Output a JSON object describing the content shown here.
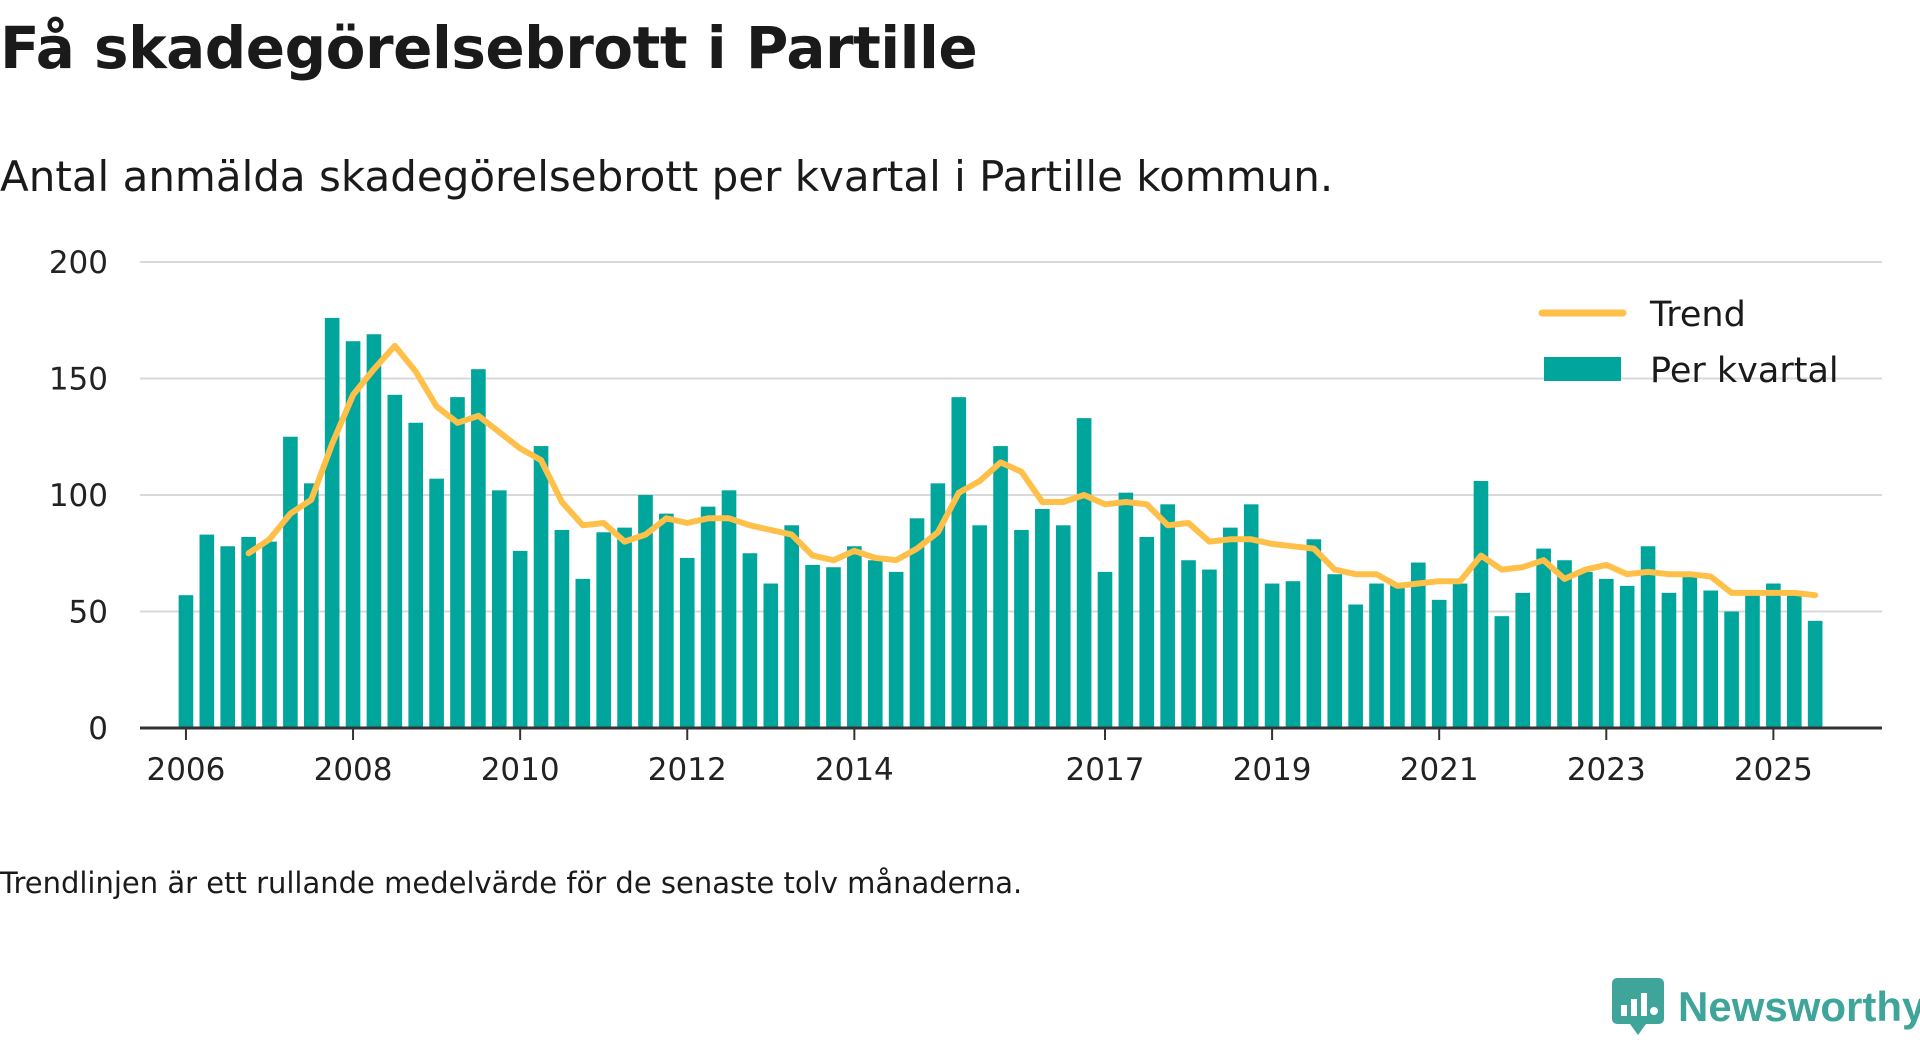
{
  "title": "Få skadegörelsebrott i Partille",
  "subtitle": "Antal anmälda skadegörelsebrott per kvartal i Partille kommun.",
  "footnote": "Trendlinjen är ett rullande medelvärde för de senaste tolv månaderna.",
  "brand": "Newsworthy",
  "colors": {
    "bars": "#00a69c",
    "trend": "#ffc04a",
    "grid": "#d9d9d9",
    "axis": "#333333",
    "brand": "#3fa59b"
  },
  "chart_data": {
    "type": "bar",
    "x_start": 2006.0,
    "x_step": 0.25,
    "ylim": [
      0,
      200
    ],
    "xlim": [
      2005.45,
      2026.3
    ],
    "yticks": [
      0,
      50,
      100,
      150,
      200
    ],
    "xticks": [
      2006,
      2008,
      2010,
      2012,
      2014,
      2017,
      2019,
      2021,
      2023,
      2025
    ],
    "grid": true,
    "legend_position": "top-right",
    "legend": [
      "Trend",
      "Per kvartal"
    ],
    "series": [
      {
        "name": "Per kvartal",
        "type": "bar",
        "values": [
          57,
          83,
          78,
          82,
          80,
          125,
          105,
          176,
          166,
          169,
          143,
          131,
          107,
          142,
          154,
          102,
          76,
          121,
          85,
          64,
          84,
          86,
          100,
          92,
          73,
          95,
          102,
          75,
          62,
          87,
          70,
          69,
          78,
          72,
          67,
          90,
          105,
          142,
          87,
          121,
          85,
          94,
          87,
          133,
          67,
          101,
          82,
          96,
          72,
          68,
          86,
          96,
          62,
          63,
          81,
          66,
          53,
          62,
          62,
          71,
          55,
          62,
          106,
          48,
          58,
          77,
          72,
          67,
          64,
          61,
          78,
          58,
          65,
          59,
          50,
          57,
          62,
          57,
          46
        ]
      },
      {
        "name": "Trend",
        "type": "line",
        "x": [
          2006.75,
          2007.0,
          2007.25,
          2007.5,
          2007.75,
          2008.0,
          2008.25,
          2008.5,
          2008.75,
          2009.0,
          2009.25,
          2009.5,
          2009.75,
          2010.0,
          2010.25,
          2010.5,
          2010.75,
          2011.0,
          2011.25,
          2011.5,
          2011.75,
          2012.0,
          2012.25,
          2012.5,
          2012.75,
          2013.0,
          2013.25,
          2013.5,
          2013.75,
          2014.0,
          2014.25,
          2014.5,
          2014.75,
          2015.0,
          2015.25,
          2015.5,
          2015.75,
          2016.0,
          2016.25,
          2016.5,
          2016.75,
          2017.0,
          2017.25,
          2017.5,
          2017.75,
          2018.0,
          2018.25,
          2018.5,
          2018.75,
          2019.0,
          2019.25,
          2019.5,
          2019.75,
          2020.0,
          2020.25,
          2020.5,
          2020.75,
          2021.0,
          2021.25,
          2021.5,
          2021.75,
          2022.0,
          2022.25,
          2022.5,
          2022.75,
          2023.0,
          2023.25,
          2023.5,
          2023.75,
          2024.0,
          2024.25,
          2024.5,
          2024.75,
          2025.0,
          2025.25,
          2025.5
        ],
        "values": [
          75,
          81,
          92,
          98,
          122,
          143,
          154,
          164,
          153,
          138,
          131,
          134,
          127,
          120,
          115,
          97,
          87,
          88,
          80,
          83,
          90,
          88,
          90,
          90,
          87,
          85,
          83,
          74,
          72,
          76,
          73,
          72,
          77,
          84,
          101,
          106,
          114,
          110,
          97,
          97,
          100,
          96,
          97,
          96,
          87,
          88,
          80,
          81,
          81,
          79,
          78,
          77,
          68,
          66,
          66,
          61,
          62,
          63,
          63,
          74,
          68,
          69,
          72,
          64,
          68,
          70,
          66,
          67,
          66,
          66,
          65,
          58,
          58,
          58,
          58,
          57
        ]
      }
    ]
  }
}
